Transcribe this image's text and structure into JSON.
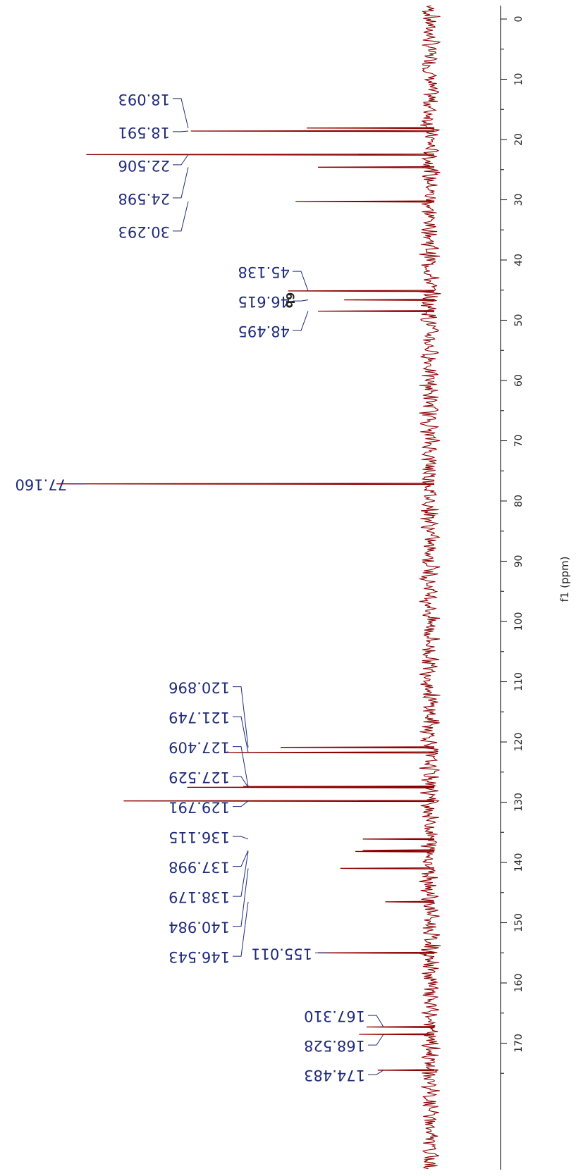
{
  "chart_data": {
    "type": "line",
    "title": "6b",
    "xlabel": "f1 (ppm)",
    "ylabel": "",
    "xlim": [
      -5,
      179
    ],
    "orientation": "rotated-90",
    "axis_ticks": [
      0,
      10,
      20,
      30,
      40,
      50,
      60,
      70,
      80,
      90,
      100,
      110,
      120,
      130,
      140,
      150,
      160,
      170
    ],
    "tick_labels": [
      "0",
      "10",
      "20",
      "30",
      "40",
      "50",
      "60",
      "70",
      "80",
      "90",
      "100",
      "110",
      "120",
      "130",
      "140",
      "150",
      "160",
      "170"
    ],
    "grid": false,
    "colors": {
      "spectrum": "#8b0000",
      "peak_labels": "#1f2a7a",
      "axis": "#222222"
    },
    "peaks": [
      {
        "ppm": 18.093,
        "label": "18.093",
        "intensity": 0.33
      },
      {
        "ppm": 18.591,
        "label": "18.591",
        "intensity": 0.64
      },
      {
        "ppm": 22.506,
        "label": "22.506",
        "intensity": 0.92
      },
      {
        "ppm": 24.598,
        "label": "24.598",
        "intensity": 0.3
      },
      {
        "ppm": 30.293,
        "label": "30.293",
        "intensity": 0.36
      },
      {
        "ppm": 45.138,
        "label": "45.138",
        "intensity": 0.38
      },
      {
        "ppm": 46.615,
        "label": "46.615",
        "intensity": 0.23
      },
      {
        "ppm": 48.495,
        "label": "48.495",
        "intensity": 0.3
      },
      {
        "ppm": 77.16,
        "label": "77.160",
        "intensity": 1.0
      },
      {
        "ppm": 120.896,
        "label": "120.896",
        "intensity": 0.4
      },
      {
        "ppm": 121.749,
        "label": "121.749",
        "intensity": 0.55
      },
      {
        "ppm": 127.409,
        "label": "127.409",
        "intensity": 0.5
      },
      {
        "ppm": 127.529,
        "label": "127.529",
        "intensity": 0.65
      },
      {
        "ppm": 129.791,
        "label": "129.791",
        "intensity": 0.82
      },
      {
        "ppm": 136.115,
        "label": "136.115",
        "intensity": 0.18
      },
      {
        "ppm": 137.998,
        "label": "137.998",
        "intensity": 0.18
      },
      {
        "ppm": 138.179,
        "label": "138.179",
        "intensity": 0.2
      },
      {
        "ppm": 140.984,
        "label": "140.984",
        "intensity": 0.24
      },
      {
        "ppm": 146.543,
        "label": "146.543",
        "intensity": 0.12
      },
      {
        "ppm": 155.011,
        "label": "155.011",
        "intensity": 0.3
      },
      {
        "ppm": 167.31,
        "label": "167.310",
        "intensity": 0.17
      },
      {
        "ppm": 168.528,
        "label": "168.528",
        "intensity": 0.19
      },
      {
        "ppm": 174.483,
        "label": "174.483",
        "intensity": 0.14
      }
    ]
  }
}
